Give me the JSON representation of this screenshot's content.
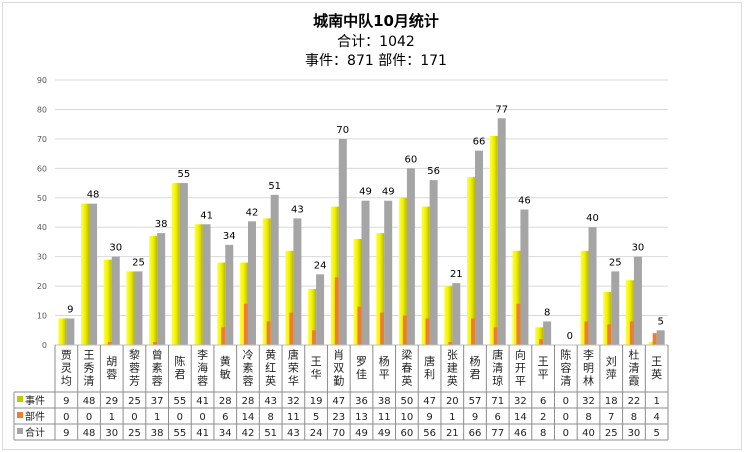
{
  "chart_data": {
    "type": "bar",
    "title": "城南中队10月统计",
    "subtitle1": "合计：1042",
    "subtitle2": "事件：871 部件：171",
    "ylim": [
      0,
      90
    ],
    "yticks": [
      0,
      10,
      20,
      30,
      40,
      50,
      60,
      70,
      80,
      90
    ],
    "grid": true,
    "legend": "bottom (data table)",
    "categories": [
      "贾灵均",
      "王秀清",
      "胡蓉",
      "黎蓉芳",
      "曾素蓉",
      "陈君",
      "李海蓉",
      "黄敏",
      "冷素蓉",
      "黄红英",
      "唐荣华",
      "王华",
      "肖双勤",
      "罗佳",
      "杨平",
      "梁春英",
      "唐利",
      "张建英",
      "杨君",
      "唐清琼",
      "向开平",
      "王平",
      "陈容清",
      "李明林",
      "刘萍",
      "杜清霞",
      "王英"
    ],
    "series": [
      {
        "name": "事件",
        "color": "#d4d400",
        "values": [
          9,
          48,
          29,
          25,
          37,
          55,
          41,
          28,
          28,
          43,
          32,
          19,
          47,
          36,
          38,
          50,
          47,
          20,
          57,
          71,
          32,
          6,
          0,
          32,
          18,
          22,
          1
        ]
      },
      {
        "name": "部件",
        "color": "#ed7d31",
        "values": [
          0,
          0,
          1,
          0,
          1,
          0,
          0,
          6,
          14,
          8,
          11,
          5,
          23,
          13,
          11,
          10,
          9,
          1,
          9,
          6,
          14,
          2,
          0,
          8,
          7,
          8,
          4
        ]
      },
      {
        "name": "合计",
        "color": "#a5a5a5",
        "values": [
          9,
          48,
          30,
          25,
          38,
          55,
          41,
          34,
          42,
          51,
          43,
          24,
          70,
          49,
          49,
          60,
          56,
          21,
          66,
          77,
          46,
          8,
          0,
          40,
          25,
          30,
          5
        ]
      }
    ]
  }
}
